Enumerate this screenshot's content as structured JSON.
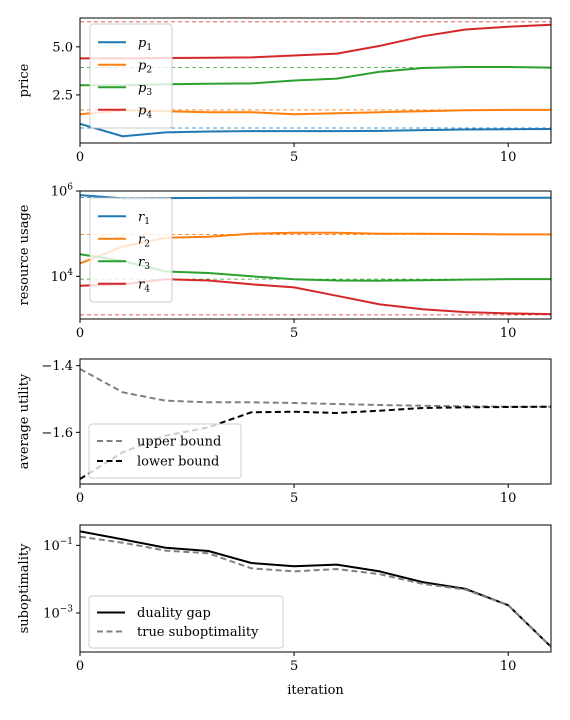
{
  "colors": {
    "blue": "#1f77b4",
    "orange": "#ff7f0e",
    "green": "#2ca02c",
    "red": "#d62728",
    "black": "#000000",
    "gray": "#808080"
  },
  "chart_data": [
    {
      "type": "line",
      "ylabel": "price",
      "xlim": [
        0,
        11
      ],
      "ylim": [
        0,
        6.5
      ],
      "yscale": "linear",
      "xticks": [
        0,
        5,
        10
      ],
      "yticks": [
        {
          "v": 2.5,
          "label": "2.5"
        },
        {
          "v": 5.0,
          "label": "5.0"
        }
      ],
      "show_xtick_labels": true,
      "legend_position": "upper-left",
      "x": [
        0,
        1,
        2,
        3,
        4,
        5,
        6,
        7,
        8,
        9,
        10,
        11
      ],
      "series": [
        {
          "name": "p",
          "sub": "1",
          "color": "#1f77b4",
          "style": "solid",
          "values": [
            1.0,
            0.35,
            0.55,
            0.6,
            0.62,
            0.62,
            0.62,
            0.63,
            0.67,
            0.7,
            0.72,
            0.73
          ],
          "ref": 0.78
        },
        {
          "name": "p",
          "sub": "2",
          "color": "#ff7f0e",
          "style": "solid",
          "values": [
            1.5,
            1.7,
            1.65,
            1.6,
            1.6,
            1.5,
            1.55,
            1.6,
            1.65,
            1.7,
            1.72,
            1.72
          ],
          "ref": 1.72
        },
        {
          "name": "p",
          "sub": "3",
          "color": "#2ca02c",
          "style": "solid",
          "values": [
            3.0,
            3.0,
            3.05,
            3.08,
            3.1,
            3.25,
            3.35,
            3.7,
            3.9,
            3.95,
            3.95,
            3.92
          ],
          "ref": 3.92
        },
        {
          "name": "p",
          "sub": "4",
          "color": "#d62728",
          "style": "solid",
          "values": [
            4.4,
            4.4,
            4.42,
            4.43,
            4.45,
            4.55,
            4.65,
            5.05,
            5.55,
            5.9,
            6.05,
            6.15
          ],
          "ref": 6.3
        }
      ]
    },
    {
      "type": "line",
      "ylabel": "resource usage",
      "xlim": [
        0,
        11
      ],
      "ylim": [
        1000,
        1000000
      ],
      "yscale": "log",
      "xticks": [
        0,
        5,
        10
      ],
      "yticks": [
        {
          "v": 10000,
          "label": "10",
          "exp": "4"
        },
        {
          "v": 1000000,
          "label": "10",
          "exp": "6"
        }
      ],
      "show_xtick_labels": true,
      "legend_position": "upper-left",
      "x": [
        0,
        1,
        2,
        3,
        4,
        5,
        6,
        7,
        8,
        9,
        10,
        11
      ],
      "series": [
        {
          "name": "r",
          "sub": "1",
          "color": "#1f77b4",
          "style": "solid",
          "values": [
            800000,
            670000,
            680000,
            690000,
            695000,
            695000,
            695000,
            695000,
            695000,
            695000,
            695000,
            695000
          ],
          "ref": 700000
        },
        {
          "name": "r",
          "sub": "2",
          "color": "#ff7f0e",
          "style": "solid",
          "values": [
            20000,
            50000,
            80000,
            85000,
            100000,
            105000,
            105000,
            100000,
            100000,
            98000,
            96000,
            96000
          ],
          "ref": 96000
        },
        {
          "name": "r",
          "sub": "3",
          "color": "#2ca02c",
          "style": "solid",
          "values": [
            33000,
            23000,
            13000,
            12000,
            10000,
            8500,
            8000,
            7900,
            8100,
            8400,
            8600,
            8600
          ],
          "ref": 8600
        },
        {
          "name": "r",
          "sub": "4",
          "color": "#d62728",
          "style": "solid",
          "values": [
            6000,
            6500,
            8500,
            8000,
            6500,
            5500,
            3500,
            2200,
            1700,
            1450,
            1350,
            1300
          ],
          "ref": 1250
        }
      ]
    },
    {
      "type": "line",
      "ylabel": "average utility",
      "xlim": [
        0,
        11
      ],
      "ylim": [
        -1.755,
        -1.38
      ],
      "yscale": "linear",
      "xticks": [
        0,
        5,
        10
      ],
      "yticks": [
        {
          "v": -1.6,
          "label": "−1.6"
        },
        {
          "v": -1.4,
          "label": "−1.4"
        }
      ],
      "show_xtick_labels": true,
      "legend_position": "lower-left",
      "x": [
        0,
        1,
        2,
        3,
        4,
        5,
        6,
        7,
        8,
        9,
        10,
        11
      ],
      "series": [
        {
          "name": "upper bound",
          "color": "#808080",
          "style": "dashed",
          "values": [
            -1.41,
            -1.48,
            -1.505,
            -1.51,
            -1.51,
            -1.512,
            -1.515,
            -1.518,
            -1.52,
            -1.522,
            -1.523,
            -1.523
          ]
        },
        {
          "name": "lower bound",
          "color": "#000000",
          "style": "dashed",
          "values": [
            -1.74,
            -1.66,
            -1.61,
            -1.585,
            -1.54,
            -1.538,
            -1.542,
            -1.535,
            -1.527,
            -1.525,
            -1.524,
            -1.523
          ]
        }
      ]
    },
    {
      "type": "line",
      "ylabel": "suboptimality",
      "xlabel": "iteration",
      "xlim": [
        0,
        11
      ],
      "ylim": [
        7e-05,
        0.4
      ],
      "yscale": "log",
      "xticks": [
        0,
        5,
        10
      ],
      "yticks": [
        {
          "v": 0.001,
          "label": "10",
          "exp": "−3"
        },
        {
          "v": 0.1,
          "label": "10",
          "exp": "−1"
        }
      ],
      "show_xtick_labels": true,
      "legend_position": "lower-left",
      "x": [
        0,
        1,
        2,
        3,
        4,
        5,
        6,
        7,
        8,
        9,
        10,
        11
      ],
      "series": [
        {
          "name": "duality gap",
          "color": "#000000",
          "style": "solid",
          "values": [
            0.26,
            0.15,
            0.085,
            0.068,
            0.03,
            0.024,
            0.027,
            0.017,
            0.0082,
            0.0052,
            0.0017,
            0.0001
          ]
        },
        {
          "name": "true suboptimality",
          "color": "#808080",
          "style": "dashed",
          "values": [
            0.18,
            0.12,
            0.07,
            0.058,
            0.021,
            0.017,
            0.02,
            0.014,
            0.0073,
            0.0049,
            0.0017,
            0.0001
          ]
        }
      ]
    }
  ]
}
